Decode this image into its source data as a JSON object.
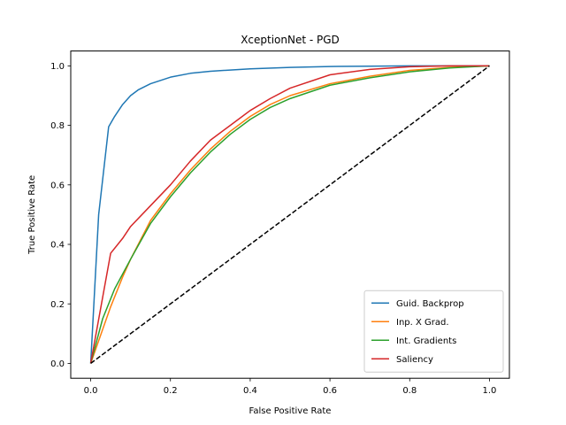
{
  "chart_data": {
    "type": "line",
    "title": "XceptionNet - PGD",
    "xlabel": "False Positive Rate",
    "ylabel": "True Positive Rate",
    "xlim": [
      -0.05,
      1.05
    ],
    "ylim": [
      -0.05,
      1.05
    ],
    "grid": false,
    "legend_position": "lower-right",
    "xticks": [
      0.0,
      0.2,
      0.4,
      0.6,
      0.8,
      1.0
    ],
    "xtick_labels": [
      "0.0",
      "0.2",
      "0.4",
      "0.6",
      "0.8",
      "1.0"
    ],
    "yticks": [
      0.0,
      0.2,
      0.4,
      0.6,
      0.8,
      1.0
    ],
    "ytick_labels": [
      "0.0",
      "0.2",
      "0.4",
      "0.6",
      "0.8",
      "1.0"
    ],
    "series": [
      {
        "name": "Guid. Backprop",
        "color": "#1f77b4",
        "x": [
          0.0,
          0.02,
          0.045,
          0.06,
          0.08,
          0.1,
          0.12,
          0.15,
          0.2,
          0.25,
          0.3,
          0.4,
          0.5,
          0.6,
          0.7,
          0.8,
          0.9,
          1.0
        ],
        "y": [
          0.0,
          0.5,
          0.795,
          0.83,
          0.87,
          0.9,
          0.92,
          0.94,
          0.962,
          0.975,
          0.982,
          0.99,
          0.995,
          0.998,
          0.999,
          1.0,
          1.0,
          1.0
        ]
      },
      {
        "name": "Inp. X Grad.",
        "color": "#ff7f0e",
        "x": [
          0.0,
          0.05,
          0.08,
          0.1,
          0.15,
          0.2,
          0.25,
          0.3,
          0.35,
          0.4,
          0.45,
          0.5,
          0.6,
          0.7,
          0.8,
          0.9,
          1.0
        ],
        "y": [
          0.0,
          0.19,
          0.29,
          0.35,
          0.48,
          0.57,
          0.65,
          0.72,
          0.78,
          0.83,
          0.87,
          0.9,
          0.94,
          0.965,
          0.985,
          0.995,
          1.0
        ]
      },
      {
        "name": "Int. Gradients",
        "color": "#2ca02c",
        "x": [
          0.0,
          0.03,
          0.06,
          0.1,
          0.15,
          0.2,
          0.25,
          0.3,
          0.35,
          0.4,
          0.45,
          0.5,
          0.6,
          0.7,
          0.8,
          0.9,
          1.0
        ],
        "y": [
          0.0,
          0.15,
          0.25,
          0.35,
          0.47,
          0.56,
          0.64,
          0.71,
          0.77,
          0.82,
          0.86,
          0.89,
          0.935,
          0.96,
          0.98,
          0.993,
          1.0
        ]
      },
      {
        "name": "Saliency",
        "color": "#d62728",
        "x": [
          0.0,
          0.05,
          0.08,
          0.1,
          0.15,
          0.2,
          0.25,
          0.3,
          0.35,
          0.4,
          0.45,
          0.5,
          0.6,
          0.7,
          0.8,
          0.9,
          1.0
        ],
        "y": [
          0.0,
          0.37,
          0.42,
          0.46,
          0.53,
          0.6,
          0.68,
          0.75,
          0.8,
          0.85,
          0.89,
          0.925,
          0.97,
          0.988,
          0.997,
          1.0,
          1.0
        ]
      },
      {
        "name": "chance",
        "color": "#000000",
        "dashed": true,
        "in_legend": false,
        "x": [
          0.0,
          1.0
        ],
        "y": [
          0.0,
          1.0
        ]
      }
    ]
  }
}
